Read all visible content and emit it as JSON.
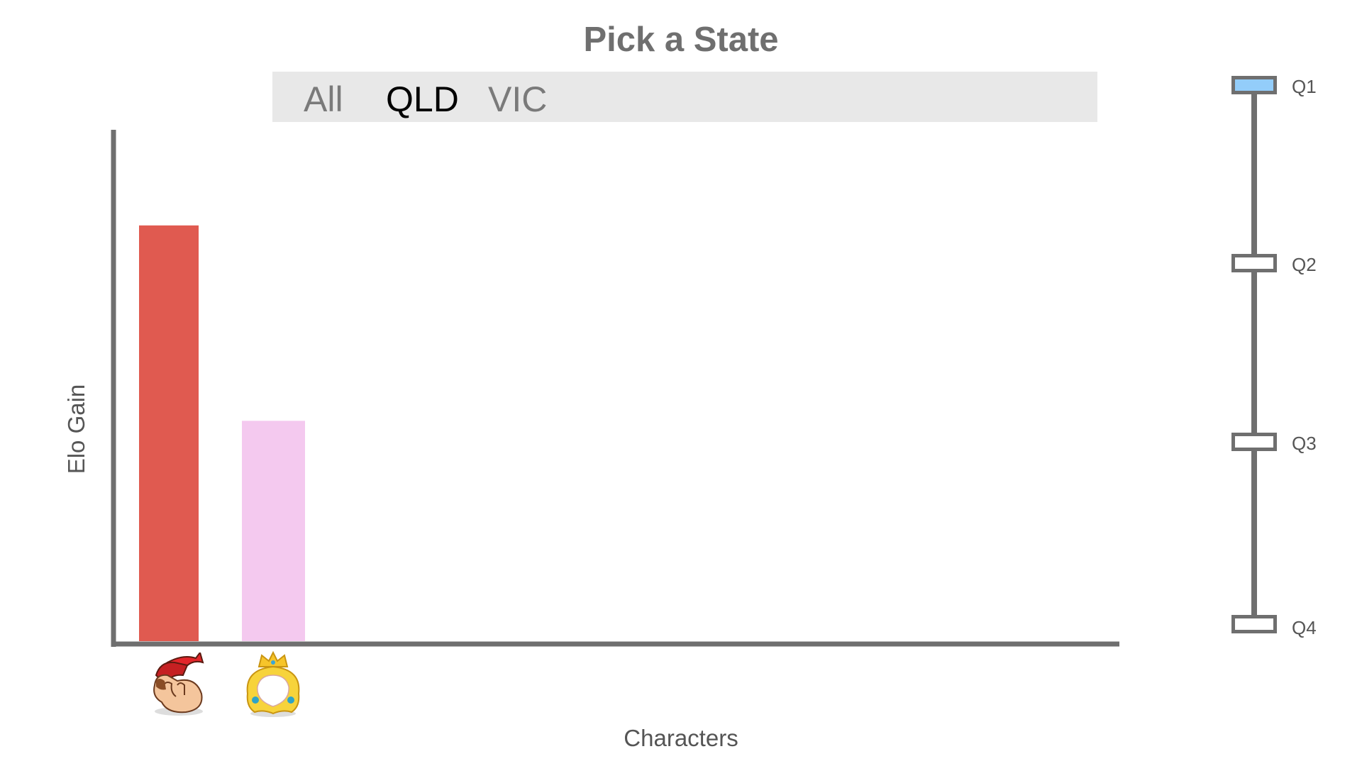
{
  "title": "Pick a State",
  "tabs": [
    {
      "label": "All",
      "active": false
    },
    {
      "label": "QLD",
      "active": true
    },
    {
      "label": "VIC",
      "active": false
    }
  ],
  "slider": {
    "stops": [
      {
        "label": "Q1",
        "active": true
      },
      {
        "label": "Q2",
        "active": false
      },
      {
        "label": "Q3",
        "active": false
      },
      {
        "label": "Q4",
        "active": false
      }
    ],
    "active_color": "#93cdfa"
  },
  "chart_data": {
    "type": "bar",
    "xlabel": "Characters",
    "ylabel": "Elo Gain",
    "categories": [
      {
        "icon": "donkey-kong-icon",
        "color": "#e05a50"
      },
      {
        "icon": "peach-icon",
        "color": "#f4c9ef"
      }
    ],
    "values": [
      100,
      53
    ],
    "ylim": [
      0,
      123
    ],
    "grid": false
  }
}
